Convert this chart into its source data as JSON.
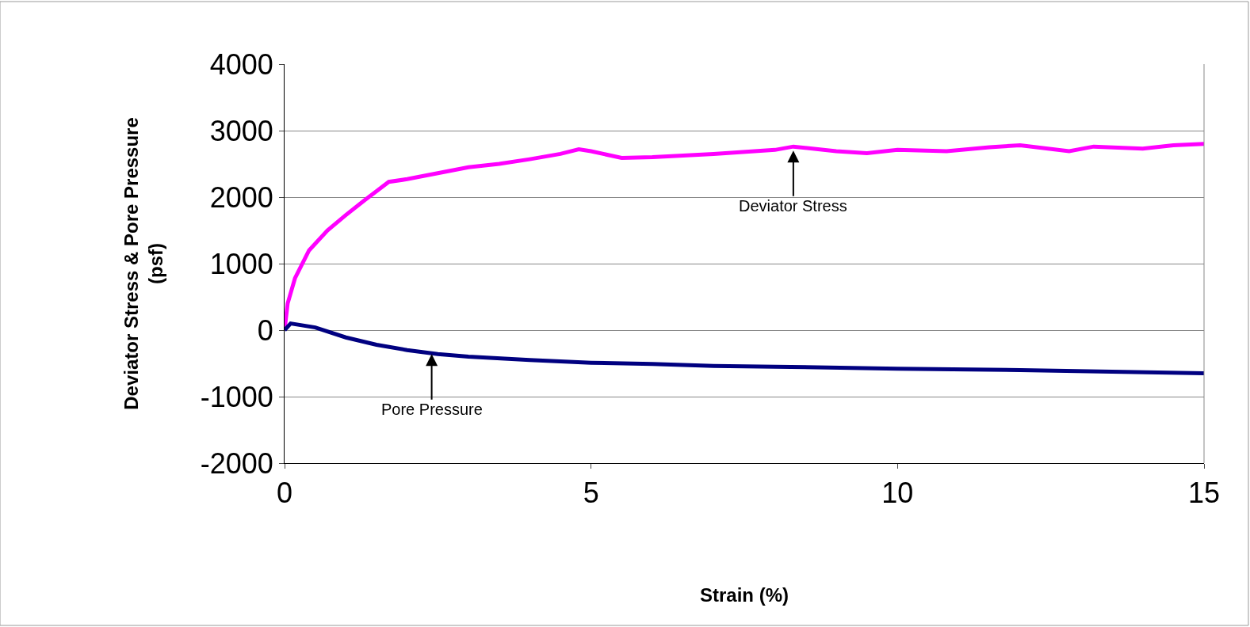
{
  "chart_data": {
    "type": "line",
    "xlabel": "Strain (%)",
    "ylabel": "Deviator Stress & Pore Pressure\n(psf)",
    "xlim": [
      0,
      15
    ],
    "xticks": [
      0,
      5,
      10,
      15
    ],
    "ylim": [
      -2000,
      4000
    ],
    "yticks": [
      -2000,
      -1000,
      0,
      1000,
      2000,
      3000,
      4000
    ],
    "grid": "y",
    "marker": "none",
    "line_style": "solid",
    "series": [
      {
        "color": "#ff00ff",
        "x": [
          0,
          0.05,
          0.17,
          0.4,
          0.7,
          1,
          1.3,
          1.5,
          1.7,
          2,
          2.5,
          3,
          3.5,
          4,
          4.5,
          4.8,
          5,
          5.5,
          6,
          7,
          8,
          8.3,
          9,
          9.5,
          10,
          10.8,
          11.5,
          12,
          12.8,
          13.2,
          14,
          14.5,
          15
        ],
        "values": [
          0,
          400,
          780,
          1200,
          1500,
          1730,
          1950,
          2090,
          2230,
          2270,
          2360,
          2450,
          2500,
          2570,
          2650,
          2720,
          2690,
          2590,
          2600,
          2650,
          2710,
          2760,
          2690,
          2660,
          2710,
          2690,
          2750,
          2780,
          2690,
          2760,
          2730,
          2780,
          2800
        ]
      },
      {
        "color": "#000080",
        "x": [
          0,
          0.1,
          0.5,
          1,
          1.5,
          2,
          2.5,
          3,
          4,
          5,
          6,
          7,
          8,
          10,
          12,
          15
        ],
        "values": [
          0,
          100,
          40,
          -110,
          -220,
          -300,
          -360,
          -400,
          -450,
          -490,
          -510,
          -540,
          -550,
          -580,
          -600,
          -650
        ]
      }
    ],
    "annotations": [
      {
        "text": "Deviator Stress",
        "x": 8.3,
        "y": 2700
      },
      {
        "text": "Pore Pressure",
        "x": 2.4,
        "y": -360
      }
    ]
  }
}
